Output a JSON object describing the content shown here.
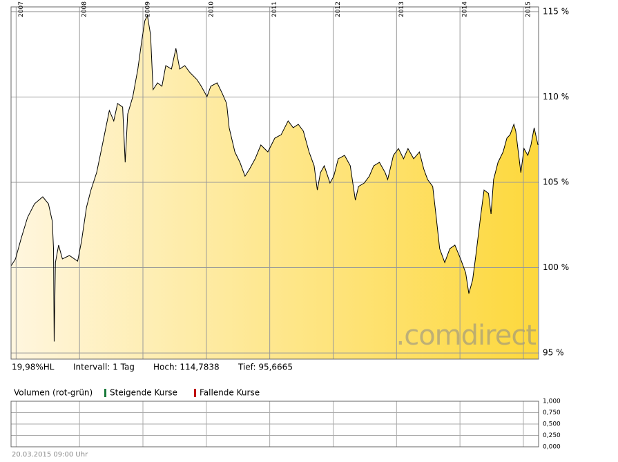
{
  "chart_data": [
    {
      "type": "area",
      "x": [
        2006.92,
        2006.99,
        2007.08,
        2007.18,
        2007.29,
        2007.42,
        2007.51,
        2007.57,
        2007.59,
        2007.6,
        2007.62,
        2007.67,
        2007.73,
        2007.84,
        2007.97,
        2008.03,
        2008.11,
        2008.18,
        2008.27,
        2008.36,
        2008.47,
        2008.54,
        2008.6,
        2008.68,
        2008.72,
        2008.76,
        2008.84,
        2008.92,
        2008.98,
        2009.03,
        2009.07,
        2009.12,
        2009.16,
        2009.23,
        2009.3,
        2009.36,
        2009.45,
        2009.52,
        2009.58,
        2009.66,
        2009.74,
        2009.85,
        2009.92,
        2010.01,
        2010.07,
        2010.17,
        2010.25,
        2010.32,
        2010.36,
        2010.45,
        2010.53,
        2010.61,
        2010.68,
        2010.77,
        2010.86,
        2010.97,
        2011.08,
        2011.18,
        2011.29,
        2011.37,
        2011.45,
        2011.53,
        2011.62,
        2011.7,
        2011.75,
        2011.8,
        2011.86,
        2011.95,
        2012.01,
        2012.08,
        2012.18,
        2012.27,
        2012.35,
        2012.4,
        2012.49,
        2012.57,
        2012.64,
        2012.73,
        2012.82,
        2012.86,
        2012.95,
        2013.03,
        2013.11,
        2013.18,
        2013.27,
        2013.36,
        2013.43,
        2013.49,
        2013.57,
        2013.62,
        2013.68,
        2013.76,
        2013.84,
        2013.92,
        2014.01,
        2014.09,
        2014.14,
        2014.2,
        2014.25,
        2014.33,
        2014.38,
        2014.45,
        2014.49,
        2014.53,
        2014.6,
        2014.68,
        2014.74,
        2014.79,
        2014.85,
        2014.88,
        2014.92,
        2014.96,
        2015.01,
        2015.07,
        2015.12,
        2015.17,
        2015.23
      ],
      "values": [
        100.1,
        100.51,
        101.72,
        102.94,
        103.74,
        104.15,
        103.74,
        102.73,
        101.11,
        95.67,
        100.3,
        101.32,
        100.51,
        100.71,
        100.38,
        101.52,
        103.54,
        104.55,
        105.57,
        107.19,
        109.21,
        108.6,
        109.62,
        109.41,
        106.17,
        109.01,
        110.02,
        111.64,
        113.26,
        114.47,
        114.78,
        113.66,
        110.43,
        110.83,
        110.63,
        111.84,
        111.64,
        112.85,
        111.64,
        111.84,
        111.44,
        111.03,
        110.63,
        110.02,
        110.63,
        110.83,
        110.22,
        109.62,
        108.2,
        106.78,
        106.17,
        105.36,
        105.77,
        106.38,
        107.19,
        106.78,
        107.59,
        107.79,
        108.6,
        108.2,
        108.4,
        108.0,
        106.78,
        105.97,
        104.55,
        105.57,
        105.97,
        104.96,
        105.36,
        106.38,
        106.58,
        105.97,
        103.95,
        104.76,
        104.96,
        105.36,
        105.97,
        106.17,
        105.57,
        105.16,
        106.58,
        106.98,
        106.38,
        106.98,
        106.38,
        106.78,
        105.77,
        105.16,
        104.76,
        103.14,
        101.11,
        100.3,
        101.11,
        101.32,
        100.51,
        99.7,
        98.48,
        99.29,
        100.71,
        103.14,
        104.55,
        104.35,
        103.14,
        105.16,
        106.17,
        106.78,
        107.59,
        107.79,
        108.4,
        108.0,
        106.78,
        105.57,
        106.98,
        106.58,
        107.19,
        108.2,
        107.19
      ],
      "color": "#000000",
      "fill_gradient": [
        "#fff6df",
        "#fdd83c"
      ],
      "xlim": [
        2006.92,
        2015.24
      ],
      "ylim": [
        94.64,
        115.28
      ],
      "xticks": [
        2007,
        2008,
        2009,
        2010,
        2011,
        2012,
        2013,
        2014,
        2015
      ],
      "yticks": [
        {
          "value": 95,
          "label": "95 %"
        },
        {
          "value": 100,
          "label": "100 %"
        },
        {
          "value": 105,
          "label": "105 %"
        },
        {
          "value": 110,
          "label": "110 %"
        },
        {
          "value": 115,
          "label": "115 %"
        }
      ],
      "grid": true,
      "watermark": ".comdirect"
    },
    {
      "type": "bar",
      "title": "Volumen (rot-grün)",
      "series": [
        {
          "name": "Steigende Kurse",
          "color": "#1a7a3a",
          "values": []
        },
        {
          "name": "Fallende Kurse",
          "color": "#c00000",
          "values": []
        }
      ],
      "xlim": [
        2006.92,
        2015.24
      ],
      "xticks": [
        2007,
        2008,
        2009,
        2010,
        2011,
        2012,
        2013,
        2014,
        2015
      ],
      "ylim": [
        0,
        1
      ],
      "yticks": [
        {
          "value": 0,
          "label": "0,000"
        },
        {
          "value": 0.25,
          "label": "0,250"
        },
        {
          "value": 0.5,
          "label": "0,500"
        },
        {
          "value": 0.75,
          "label": "0,750"
        },
        {
          "value": 1,
          "label": "1,000"
        }
      ],
      "grid": true
    }
  ],
  "info": [
    "19,98%HL",
    "Intervall: 1 Tag",
    "Hoch: 114,7838",
    "Tief: 95,6665"
  ],
  "timestamp": "20.03.2015 09:00 Uhr"
}
